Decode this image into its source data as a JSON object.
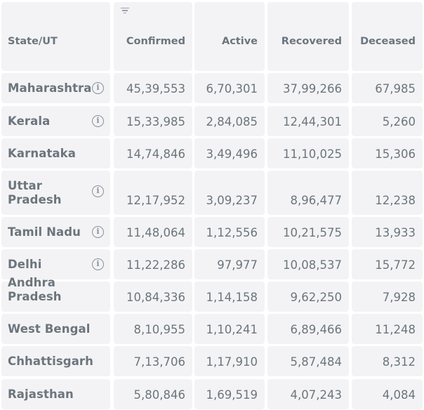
{
  "header": {
    "state": "State/UT",
    "confirmed": "Confirmed",
    "active": "Active",
    "recovered": "Recovered",
    "deceased": "Deceased"
  },
  "rows": [
    {
      "state": "Maharashtra",
      "info": true,
      "confirmed": "45,39,553",
      "active": "6,70,301",
      "recovered": "37,99,266",
      "deceased": "67,985"
    },
    {
      "state": "Kerala",
      "info": true,
      "confirmed": "15,33,985",
      "active": "2,84,085",
      "recovered": "12,44,301",
      "deceased": "5,260"
    },
    {
      "state": "Karnataka",
      "info": false,
      "confirmed": "14,74,846",
      "active": "3,49,496",
      "recovered": "11,10,025",
      "deceased": "15,306"
    },
    {
      "state": "Uttar Pradesh",
      "info": true,
      "confirmed": "12,17,952",
      "active": "3,09,237",
      "recovered": "8,96,477",
      "deceased": "12,238"
    },
    {
      "state": "Tamil Nadu",
      "info": true,
      "confirmed": "11,48,064",
      "active": "1,12,556",
      "recovered": "10,21,575",
      "deceased": "13,933"
    },
    {
      "state": "Delhi",
      "info": true,
      "confirmed": "11,22,286",
      "active": "97,977",
      "recovered": "10,08,537",
      "deceased": "15,772"
    },
    {
      "state": "Andhra Pradesh",
      "info": false,
      "confirmed": "10,84,336",
      "active": "1,14,158",
      "recovered": "9,62,250",
      "deceased": "7,928"
    },
    {
      "state": "West Bengal",
      "info": false,
      "confirmed": "8,10,955",
      "active": "1,10,241",
      "recovered": "6,89,466",
      "deceased": "11,248"
    },
    {
      "state": "Chhattisgarh",
      "info": false,
      "confirmed": "7,13,706",
      "active": "1,17,910",
      "recovered": "5,87,484",
      "deceased": "8,312"
    },
    {
      "state": "Rajasthan",
      "info": false,
      "confirmed": "5,80,846",
      "active": "1,69,519",
      "recovered": "4,07,243",
      "deceased": "4,084"
    }
  ],
  "icons": {
    "info": "info-circle-icon",
    "sort": "sort-filter-icon"
  }
}
